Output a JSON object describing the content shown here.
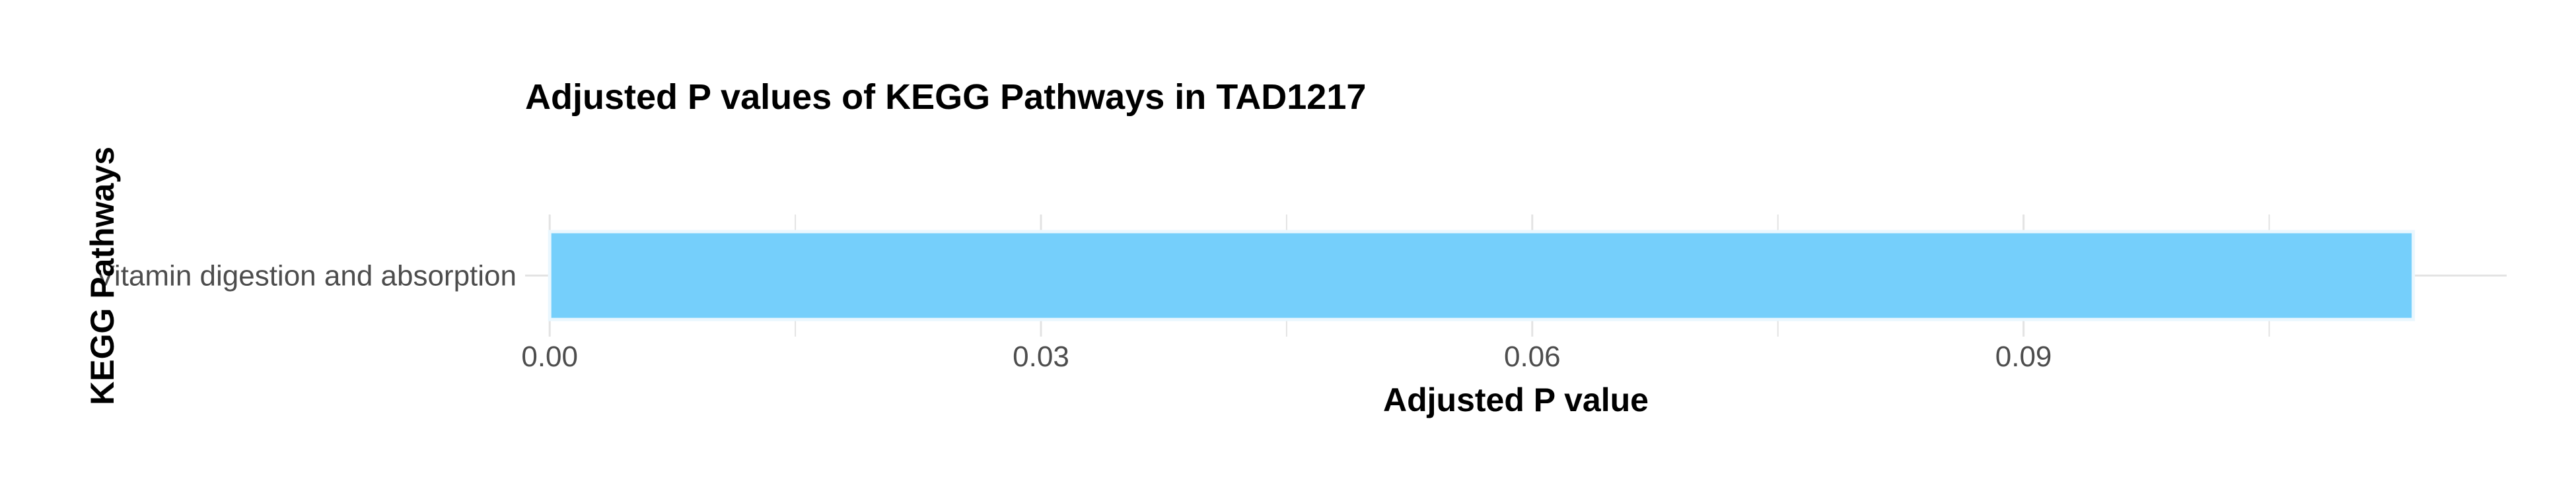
{
  "chart_data": {
    "type": "bar",
    "orientation": "horizontal",
    "title": "Adjusted P values of KEGG Pathways in TAD1217",
    "xlabel": "Adjusted P value",
    "ylabel": "KEGG Pathways",
    "categories": [
      "Vitamin digestion and absorption"
    ],
    "values": [
      0.1138
    ],
    "xlim": [
      -0.0015,
      0.1195
    ],
    "xticks": [
      0.0,
      0.03,
      0.06,
      0.09
    ],
    "xtick_labels": [
      "0.00",
      "0.03",
      "0.06",
      "0.09"
    ],
    "grid": true,
    "legend": "none",
    "colors": {
      "bar": "#75CFFB",
      "bar_outline": "#EAF7FE",
      "grid": "#e3e3e3",
      "tick_text": "#4d4d4d"
    }
  }
}
